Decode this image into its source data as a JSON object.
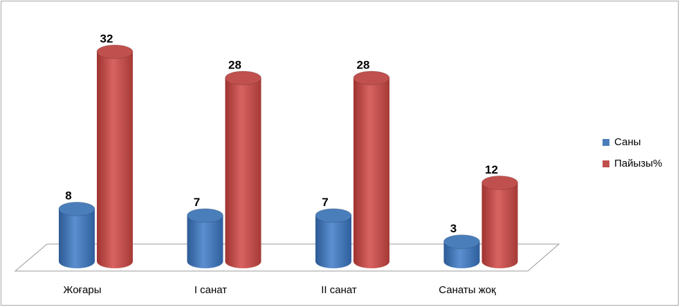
{
  "chart_data": {
    "type": "bar3d",
    "categories": [
      "Жоғары",
      "I санат",
      "II санат",
      "Санаты жоқ"
    ],
    "series": [
      {
        "name": "Саны",
        "color": "#4a7ebb",
        "values": [
          8,
          7,
          7,
          3
        ]
      },
      {
        "name": "Пайызы%",
        "color": "#c0504d",
        "values": [
          32,
          28,
          28,
          12
        ]
      }
    ],
    "data_labels": true,
    "legend": "right"
  }
}
